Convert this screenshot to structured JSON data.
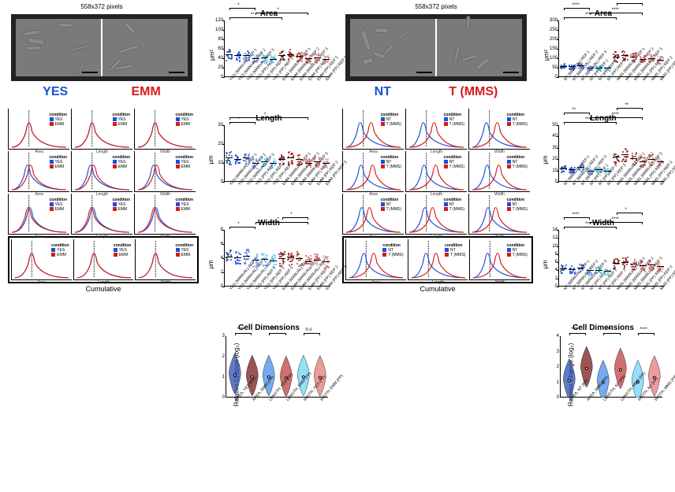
{
  "common": {
    "micrograph_dim_label": "558x372 pixels",
    "cumulative_label": "Cumulative",
    "density_metrics": [
      "Area",
      "Length",
      "Width"
    ],
    "legend_title": "condition"
  },
  "panels": {
    "left": {
      "condition_a": {
        "label": "YES",
        "color": "#1a4fd8"
      },
      "condition_b": {
        "label": "EMM",
        "color": "#d81a1a"
      },
      "scatter_xtick_labels": [
        "YES (MANUAL) REP 1",
        "YES (MANUAL) REP 2",
        "YES (MANUAL) REP 3",
        "YES (PP) REP 1",
        "YES (PP) REP 2",
        "YES (PP) REP 3",
        "EMM (MANUAL) REP 1",
        "EMM (MANUAL) REP 2",
        "EMM (MANUAL) REP 3",
        "EMM (PP) REP 1",
        "EMM (PP) REP 2",
        "EMM (PP) REP 3"
      ],
      "violin_xtick_labels": [
        "AREA, YES (PP)",
        "AREA, EMM (PP)",
        "LENGTH, YES (PP)",
        "LENGTH, EMM (PP)",
        "WIDTH, YES (PP)",
        "WIDTH, EMM (PP)"
      ],
      "group_colors": [
        "#2b4db0",
        "#1a4fd8",
        "#4a6dd8",
        "#7aa0ff",
        "#52c6ff",
        "#70d4ff",
        "#7a1a1a",
        "#a02020",
        "#c04040",
        "#d85a5a",
        "#e87a7a",
        "#f09a9a"
      ],
      "violin_colors": [
        "#2b4db0",
        "#7a1a1a",
        "#4a8de8",
        "#c04040",
        "#70d4ff",
        "#e87a7a"
      ],
      "plots": {
        "area": {
          "title": "Area",
          "ylabel": "μm²",
          "ymin": 0,
          "ymax": 120,
          "yticks": [
            0,
            20,
            40,
            60,
            80,
            100,
            120
          ],
          "means": [
            48,
            46,
            47,
            40,
            42,
            38,
            46,
            48,
            45,
            40,
            42,
            38
          ],
          "sig": [
            {
              "g": [
                0,
                6
              ],
              "lab": "**"
            },
            {
              "g": [
                3,
                9
              ],
              "lab": "*"
            },
            {
              "g": [
                0,
                3
              ],
              "lab": "*"
            }
          ]
        },
        "length": {
          "title": "Length",
          "ylabel": "μm",
          "ymin": 0,
          "ymax": 30,
          "yticks": [
            0,
            10,
            20,
            30
          ],
          "means": [
            13,
            12,
            13,
            10,
            11,
            10,
            12,
            13,
            12,
            10,
            11,
            10
          ],
          "sig": [
            {
              "g": [
                0,
                3
              ],
              "lab": "*"
            },
            {
              "g": [
                0,
                9
              ],
              "lab": "*"
            }
          ]
        },
        "width": {
          "title": "Width",
          "ylabel": "μm",
          "ymin": 0,
          "ymax": 8,
          "yticks": [
            0,
            2,
            4,
            6,
            8
          ],
          "means": [
            4.2,
            4.1,
            4.3,
            3.8,
            3.9,
            3.7,
            4.0,
            4.2,
            4.0,
            3.6,
            3.8,
            3.6
          ],
          "sig": [
            {
              "g": [
                0,
                3
              ],
              "lab": "*"
            },
            {
              "g": [
                3,
                9
              ],
              "lab": "*"
            },
            {
              "g": [
                6,
                9
              ],
              "lab": "*"
            }
          ]
        },
        "violin": {
          "title": "Cell Dimensions",
          "ylabel": "Relative Change (log₂)",
          "ymin": 0,
          "ymax": 3,
          "yticks": [
            0,
            1,
            2,
            3
          ],
          "centers": [
            1.1,
            1.0,
            1.0,
            0.95,
            1.0,
            0.98
          ],
          "sig": [
            {
              "g": [
                0,
                1
              ],
              "lab": "****"
            },
            {
              "g": [
                2,
                3
              ],
              "lab": "****"
            },
            {
              "g": [
                4,
                5
              ],
              "lab": "n.s"
            }
          ]
        }
      },
      "density_rows": [
        {
          "a_shift": 0,
          "b_shift": 0
        },
        {
          "a_shift": -2,
          "b_shift": 2
        },
        {
          "a_shift": 1,
          "b_shift": -1
        },
        {
          "a_shift": 0,
          "b_shift": 0
        }
      ]
    },
    "right": {
      "condition_a": {
        "label": "NT",
        "color": "#1a4fd8"
      },
      "condition_b": {
        "label": "T (MMS)",
        "color": "#d81a1a"
      },
      "scatter_xtick_labels": [
        "NT (MANUAL) REP 1",
        "NT (MANUAL) REP 2",
        "NT (MANUAL) REP 3",
        "NT (PP) REP 1",
        "NT (PP) REP 2",
        "NT (PP) REP 3",
        "MMS (MANUAL) REP 1",
        "MMS (MANUAL) REP 2",
        "MMS (MANUAL) REP 3",
        "MMS (PP) REP 1",
        "MMS (PP) REP 2",
        "MMS (PP) REP 3"
      ],
      "violin_xtick_labels": [
        "AREA, NT (PP)",
        "AREA, MMS (PP)",
        "LENGTH, NT (PP)",
        "LENGTH, MMS (PP)",
        "WIDTH, NT (PP)",
        "WIDTH, MMS (PP)"
      ],
      "group_colors": [
        "#2b4db0",
        "#1a4fd8",
        "#4a6dd8",
        "#7aa0ff",
        "#52c6ff",
        "#70d4ff",
        "#7a1a1a",
        "#a02020",
        "#c04040",
        "#d85a5a",
        "#e87a7a",
        "#f09a9a"
      ],
      "violin_colors": [
        "#2b4db0",
        "#7a1a1a",
        "#4a8de8",
        "#c04040",
        "#70d4ff",
        "#e87a7a"
      ],
      "plots": {
        "area": {
          "title": "Area",
          "ylabel": "μm²",
          "ymin": 0,
          "ymax": 300,
          "yticks": [
            0,
            50,
            100,
            150,
            200,
            250,
            300
          ],
          "means": [
            60,
            58,
            62,
            50,
            52,
            48,
            110,
            115,
            108,
            95,
            100,
            92
          ],
          "sig": [
            {
              "g": [
                0,
                6
              ],
              "lab": "****"
            },
            {
              "g": [
                3,
                9
              ],
              "lab": "****"
            },
            {
              "g": [
                0,
                3
              ],
              "lab": "****"
            },
            {
              "g": [
                6,
                9
              ],
              "lab": "*"
            }
          ]
        },
        "length": {
          "title": "Length",
          "ylabel": "μm",
          "ymin": 0,
          "ymax": 50,
          "yticks": [
            0,
            10,
            20,
            30,
            40,
            50
          ],
          "means": [
            12,
            11,
            13,
            10,
            11,
            10,
            22,
            24,
            21,
            18,
            20,
            18
          ],
          "sig": [
            {
              "g": [
                0,
                6
              ],
              "lab": "****"
            },
            {
              "g": [
                3,
                9
              ],
              "lab": "****"
            },
            {
              "g": [
                0,
                3
              ],
              "lab": "**"
            },
            {
              "g": [
                6,
                9
              ],
              "lab": "**"
            }
          ]
        },
        "width": {
          "title": "Width",
          "ylabel": "μm",
          "ymin": 0,
          "ymax": 14,
          "yticks": [
            0,
            2,
            4,
            6,
            8,
            10,
            12,
            14
          ],
          "means": [
            4.5,
            4.3,
            4.6,
            4.0,
            4.1,
            3.9,
            5.8,
            6.0,
            5.7,
            5.2,
            5.4,
            5.1
          ],
          "sig": [
            {
              "g": [
                0,
                6
              ],
              "lab": "****"
            },
            {
              "g": [
                3,
                9
              ],
              "lab": "****"
            },
            {
              "g": [
                0,
                3
              ],
              "lab": "****"
            },
            {
              "g": [
                6,
                9
              ],
              "lab": "*"
            }
          ]
        },
        "violin": {
          "title": "Cell Dimensions",
          "ylabel": "Relative Change (log₂)",
          "ymin": 0,
          "ymax": 4,
          "yticks": [
            0,
            1,
            2,
            3,
            4
          ],
          "centers": [
            1.1,
            1.9,
            1.0,
            1.8,
            1.0,
            1.3
          ],
          "sig": [
            {
              "g": [
                0,
                1
              ],
              "lab": "****"
            },
            {
              "g": [
                2,
                3
              ],
              "lab": "****"
            },
            {
              "g": [
                4,
                5
              ],
              "lab": "****"
            }
          ]
        }
      },
      "density_rows": [
        {
          "a_shift": -4,
          "b_shift": 10
        },
        {
          "a_shift": -3,
          "b_shift": 12
        },
        {
          "a_shift": -2,
          "b_shift": 8
        },
        {
          "a_shift": -3,
          "b_shift": 10
        }
      ]
    }
  }
}
